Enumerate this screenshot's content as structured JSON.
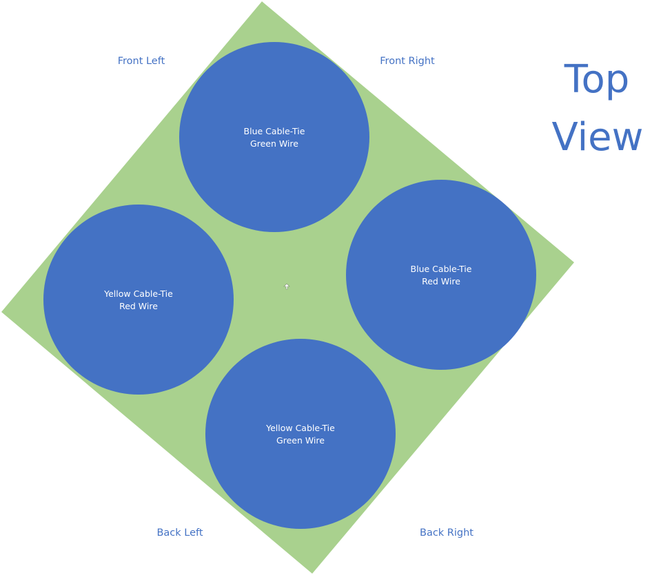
{
  "colors": {
    "board": "#A9D18E",
    "circle": "#4472C4",
    "label": "#4472C4",
    "circle_text": "#FFFFFF"
  },
  "title": {
    "line1": "Top",
    "line2": "View"
  },
  "corners": {
    "front_left": "Front Left",
    "front_right": "Front Right",
    "back_left": "Back Left",
    "back_right": "Back Right"
  },
  "circles": {
    "top": {
      "line1": "Blue Cable-Tie",
      "line2": "Green Wire"
    },
    "right": {
      "line1": "Blue Cable-Tie",
      "line2": "Red Wire"
    },
    "left": {
      "line1": "Yellow Cable-Tie",
      "line2": "Red Wire"
    },
    "bottom": {
      "line1": "Yellow Cable-Tie",
      "line2": "Green Wire"
    }
  },
  "center_icon": "move-cursor-icon"
}
